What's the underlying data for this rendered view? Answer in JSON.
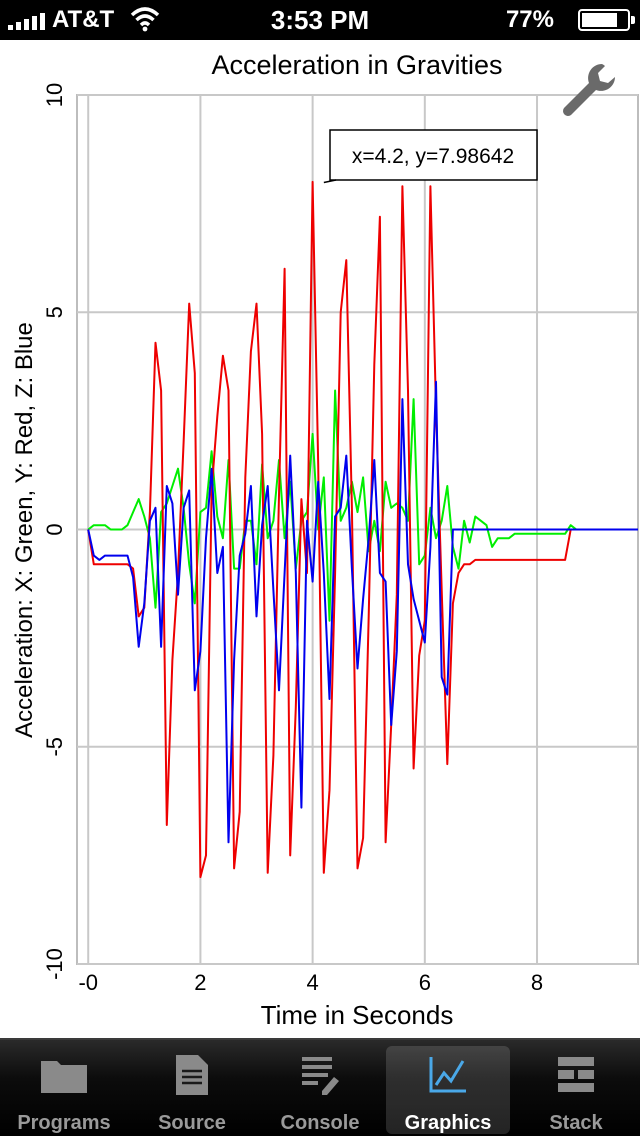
{
  "status_bar": {
    "carrier": "AT&T",
    "time": "3:53 PM",
    "battery": "77%"
  },
  "toolbar": {
    "settings_icon": "wrench-icon"
  },
  "tabs": [
    {
      "label": "Programs",
      "icon": "folder-icon",
      "active": false
    },
    {
      "label": "Source",
      "icon": "document-icon",
      "active": false
    },
    {
      "label": "Console",
      "icon": "console-icon",
      "active": false
    },
    {
      "label": "Graphics",
      "icon": "graph-icon",
      "active": true
    },
    {
      "label": "Stack",
      "icon": "stack-icon",
      "active": false
    }
  ],
  "chart_data": {
    "type": "line",
    "title": "Acceleration in Gravities",
    "xlabel": "Time in Seconds",
    "ylabel": "Acceleration: X: Green, Y: Red, Z: Blue",
    "xlim": [
      -0.2,
      9.8
    ],
    "ylim": [
      -10,
      10
    ],
    "x_ticks": [
      0,
      2,
      4,
      6,
      8
    ],
    "x_tick_labels": [
      "-0",
      "2",
      "4",
      "6",
      "8"
    ],
    "y_ticks": [
      10,
      5,
      0,
      -5,
      -10
    ],
    "y_tick_labels": [
      "10",
      "5",
      "0",
      "-5",
      "-10"
    ],
    "grid": true,
    "tooltip": {
      "text": "x=4.2, y=7.98642",
      "x": 4.2,
      "y": 7.98642
    },
    "x": [
      0,
      0.1,
      0.2,
      0.3,
      0.4,
      0.5,
      0.6,
      0.7,
      0.8,
      0.9,
      1.0,
      1.1,
      1.2,
      1.3,
      1.4,
      1.5,
      1.6,
      1.7,
      1.8,
      1.9,
      2.0,
      2.1,
      2.2,
      2.3,
      2.4,
      2.5,
      2.6,
      2.7,
      2.8,
      2.9,
      3.0,
      3.1,
      3.2,
      3.3,
      3.4,
      3.5,
      3.6,
      3.7,
      3.8,
      3.9,
      4.0,
      4.1,
      4.2,
      4.3,
      4.4,
      4.5,
      4.6,
      4.7,
      4.8,
      4.9,
      5.0,
      5.1,
      5.2,
      5.3,
      5.4,
      5.5,
      5.6,
      5.7,
      5.8,
      5.9,
      6.0,
      6.1,
      6.2,
      6.3,
      6.4,
      6.5,
      6.6,
      6.7,
      6.8,
      6.9,
      7.0,
      7.1,
      7.2,
      7.3,
      7.4,
      7.5,
      7.6,
      7.7,
      7.8,
      7.9,
      8.0,
      8.1,
      8.2,
      8.3,
      8.4,
      8.5,
      8.6,
      8.7,
      8.8,
      8.9,
      9.0,
      9.1,
      9.2,
      9.3,
      9.4,
      9.5,
      9.6,
      9.7,
      9.8
    ],
    "series": [
      {
        "name": "X",
        "color": "#00ee00",
        "values": [
          0,
          0.1,
          0.1,
          0.1,
          0,
          0,
          0,
          0.1,
          0.4,
          0.7,
          0.3,
          -0.2,
          -1.8,
          0.4,
          0.6,
          1.0,
          1.4,
          0.5,
          -0.8,
          -1.7,
          0.4,
          0.5,
          1.8,
          0.3,
          -0.2,
          1.6,
          -0.9,
          -0.9,
          0.2,
          0.2,
          -0.8,
          1.5,
          -0.2,
          0.2,
          1.6,
          -0.2,
          1.1,
          -0.9,
          0.2,
          0.4,
          2.2,
          0,
          1.2,
          -2.1,
          3.2,
          0.2,
          0.5,
          1.1,
          0.4,
          1.2,
          -0.5,
          0.2,
          -0.5,
          1.1,
          0.5,
          0.6,
          0.5,
          0.2,
          3.0,
          -0.8,
          -0.6,
          0.5,
          -0.2,
          0.2,
          1.0,
          -0.4,
          -0.9,
          0.2,
          -0.3,
          0.3,
          0.2,
          0.1,
          -0.4,
          -0.2,
          -0.2,
          -0.2,
          -0.1,
          -0.1,
          -0.1,
          -0.1,
          -0.1,
          -0.1,
          -0.1,
          -0.1,
          -0.1,
          -0.1,
          0.1,
          0,
          0,
          0,
          0,
          0,
          0,
          0,
          0,
          0,
          0,
          0,
          0
        ]
      },
      {
        "name": "Y",
        "color": "#ee0000",
        "values": [
          0,
          -0.8,
          -0.8,
          -0.8,
          -0.8,
          -0.8,
          -0.8,
          -0.8,
          -0.9,
          -2.0,
          -1.8,
          0.4,
          4.3,
          3.2,
          -6.8,
          -3.0,
          -1.0,
          2.0,
          5.2,
          3.6,
          -8.0,
          -7.5,
          0.9,
          2.6,
          4.0,
          3.2,
          -7.8,
          -6.5,
          1.2,
          4.1,
          5.2,
          2.2,
          -7.9,
          -5.2,
          0.8,
          6.0,
          -7.5,
          -4.1,
          0.7,
          -1.0,
          8.0,
          1.5,
          -7.9,
          -6.0,
          -1.0,
          5.0,
          6.2,
          0.5,
          -7.8,
          -7.1,
          -2.0,
          3.8,
          7.2,
          -7.2,
          -4.5,
          -1.5,
          7.9,
          3.2,
          -5.5,
          -2.9,
          -2.1,
          7.9,
          2.8,
          -1.4,
          -5.4,
          -1.7,
          -1.0,
          -0.8,
          -0.8,
          -0.7,
          -0.7,
          -0.7,
          -0.7,
          -0.7,
          -0.7,
          -0.7,
          -0.7,
          -0.7,
          -0.7,
          -0.7,
          -0.7,
          -0.7,
          -0.7,
          -0.7,
          -0.7,
          -0.7,
          0,
          0,
          0,
          0,
          0,
          0,
          0,
          0,
          0,
          0,
          0,
          0,
          0
        ]
      },
      {
        "name": "Z",
        "color": "#0000ee",
        "values": [
          0,
          -0.6,
          -0.7,
          -0.6,
          -0.6,
          -0.6,
          -0.6,
          -0.6,
          -1.1,
          -2.7,
          -1.7,
          0.2,
          0.5,
          -2.7,
          1.0,
          0.6,
          -1.5,
          0.5,
          0.9,
          -3.7,
          -2.8,
          -0.2,
          1.4,
          -1.0,
          -0.4,
          -7.2,
          -3.0,
          -0.6,
          -0.1,
          1.0,
          -2.0,
          0.1,
          1.0,
          -1.4,
          -3.7,
          -1.0,
          1.7,
          -1.0,
          -6.4,
          0.2,
          -1.2,
          1.1,
          -1.0,
          -3.9,
          0.3,
          0.5,
          1.7,
          -0.9,
          -3.2,
          -1.6,
          -0.2,
          1.6,
          -1.0,
          -1.2,
          -4.5,
          -2.8,
          3.0,
          -0.8,
          -1.6,
          -2.1,
          -2.6,
          -0.4,
          3.4,
          -3.4,
          -3.8,
          0,
          0,
          0,
          0,
          0,
          0,
          0,
          0,
          0,
          0,
          0,
          0,
          0,
          0,
          0,
          0,
          0,
          0,
          0,
          0,
          0,
          0,
          0,
          0,
          0,
          0,
          0,
          0,
          0,
          0,
          0,
          0,
          0,
          0
        ]
      }
    ]
  }
}
